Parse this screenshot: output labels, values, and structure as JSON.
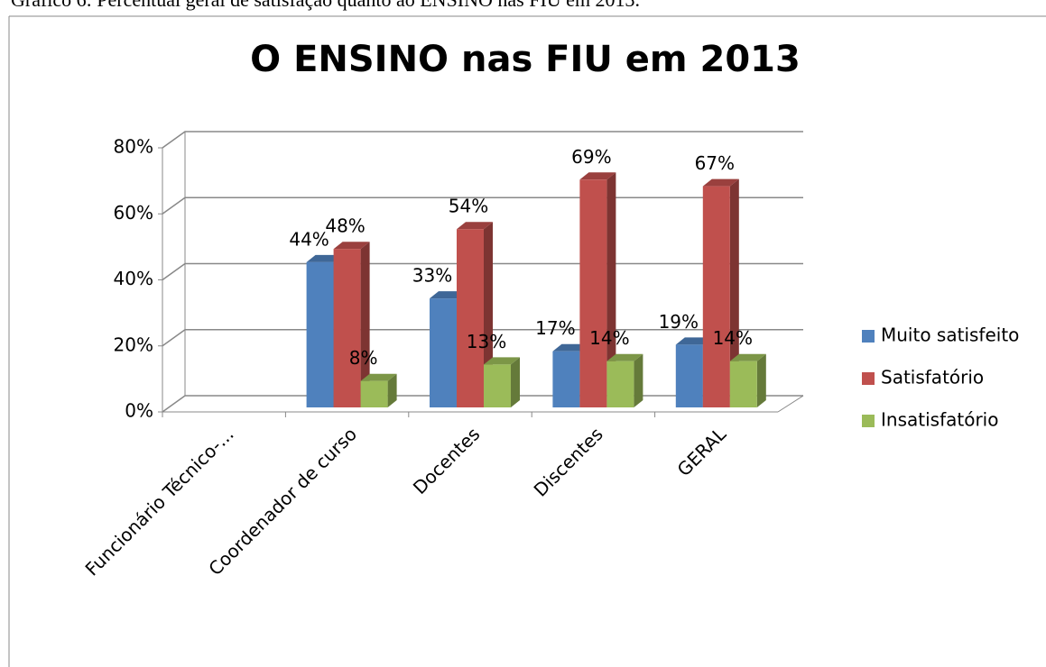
{
  "caption": "Gráfico 6: Percentual geral de satisfação quanto ao ENSINO nas FIU em 2013.",
  "chart_data": {
    "type": "bar3d",
    "title": "O ENSINO nas FIU em 2013",
    "categories": [
      "Funcionário Técnico-...",
      "Coordenador de curso",
      "Docentes",
      "Discentes",
      "GERAL"
    ],
    "series": [
      {
        "name": "Muito satisfeito",
        "color": "#4f81bd",
        "values": [
          null,
          44,
          33,
          17,
          19
        ],
        "value_labels": [
          null,
          "44%",
          "33%",
          "17%",
          "19%"
        ]
      },
      {
        "name": "Satisfatório",
        "color": "#c0504d",
        "values": [
          null,
          48,
          54,
          69,
          67
        ],
        "value_labels": [
          null,
          "48%",
          "54%",
          "69%",
          "67%"
        ]
      },
      {
        "name": "Insatisfatório",
        "color": "#9bbb59",
        "values": [
          null,
          8,
          13,
          14,
          14
        ],
        "value_labels": [
          null,
          "8%",
          "13%",
          "14%",
          "14%"
        ]
      }
    ],
    "ylim": [
      0,
      80
    ],
    "yticks": [
      {
        "value": 0,
        "label": "0%"
      },
      {
        "value": 20,
        "label": "20%"
      },
      {
        "value": 40,
        "label": "40%"
      },
      {
        "value": 60,
        "label": "60%"
      },
      {
        "value": 80,
        "label": "80%"
      }
    ],
    "grid": true,
    "legend": "right"
  }
}
